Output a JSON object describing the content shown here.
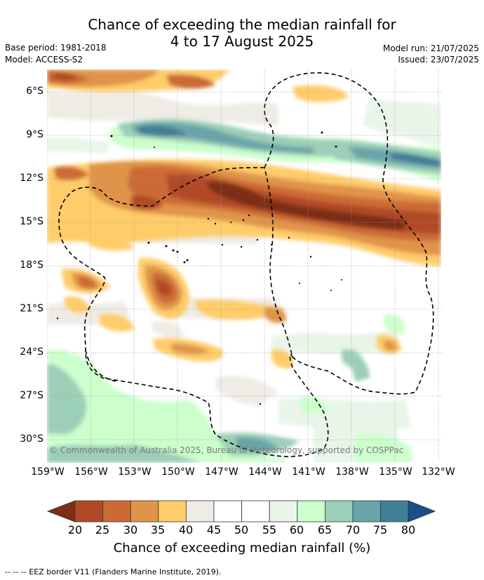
{
  "title": {
    "line1": "Chance of exceeding the median rainfall for",
    "line2": "4 to 17 August 2025"
  },
  "meta": {
    "base_period": "Base period: 1981-2018",
    "model": "Model: ACCESS-S2",
    "model_run": "Model run: 21/07/2025",
    "issued": "Issued: 23/07/2025"
  },
  "map": {
    "lat_labels": [
      "6°S",
      "9°S",
      "12°S",
      "15°S",
      "18°S",
      "21°S",
      "24°S",
      "27°S",
      "30°S"
    ],
    "lon_labels": [
      "159°W",
      "156°W",
      "153°W",
      "150°W",
      "147°W",
      "144°W",
      "141°W",
      "138°W",
      "135°W",
      "132°W"
    ],
    "copyright": "© Commonwealth of Australia 2025, Bureau of Meteorology, supported by COSPPac"
  },
  "colorbar": {
    "ticks": [
      "20",
      "25",
      "30",
      "35",
      "40",
      "45",
      "50",
      "55",
      "60",
      "65",
      "70",
      "75",
      "80"
    ],
    "colors": [
      "#7d2e16",
      "#b04a26",
      "#cc6a34",
      "#e0944a",
      "#ffcc6a",
      "#efebe5",
      "#ffffff",
      "#ffffff",
      "#e8f5e8",
      "#ccffcc",
      "#9ccfb7",
      "#6aa4a8",
      "#427e98",
      "#174f86"
    ],
    "label": "Chance of exceeding median rainfall (%)"
  },
  "legend": {
    "eez": "--  --  -- EEZ border V11 (Flanders Marine Institute, 2019)."
  }
}
